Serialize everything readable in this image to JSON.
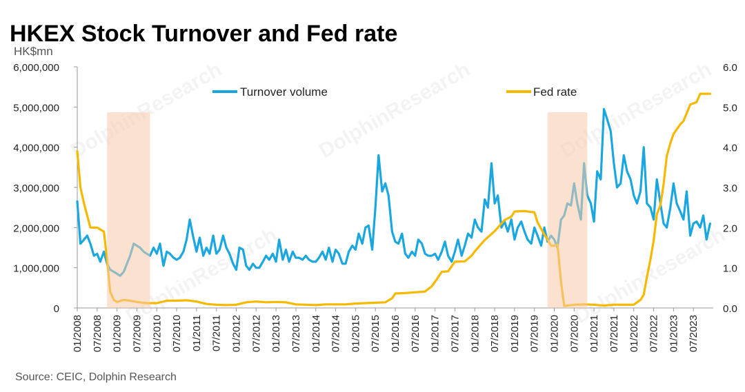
{
  "chart_data": {
    "type": "line",
    "title": "HKEX Stock Turnover and Fed rate",
    "y_left_unit": "HK$mn",
    "source": "Source: CEIC, Dolphin Research",
    "ylim_left": [
      0,
      6000000
    ],
    "ylim_right": [
      0,
      6.0
    ],
    "y_left_ticks": [
      "0",
      "1,000,000",
      "2,000,000",
      "3,000,000",
      "4,000,000",
      "5,000,000",
      "6,000,000"
    ],
    "y_right_ticks": [
      "0.0",
      "1.0",
      "2.0",
      "3.0",
      "4.0",
      "5.0",
      "6.0"
    ],
    "x_tick_labels": [
      "01/2008",
      "07/2008",
      "01/2009",
      "07/2009",
      "01/2010",
      "07/2010",
      "01/2011",
      "07/2011",
      "01/2012",
      "07/2012",
      "01/2013",
      "07/2013",
      "01/2014",
      "07/2014",
      "01/2015",
      "07/2015",
      "01/2016",
      "07/2016",
      "01/2017",
      "07/2017",
      "01/2018",
      "07/2018",
      "01/2019",
      "07/2019",
      "01/2020",
      "07/2020",
      "01/2021",
      "07/2021",
      "01/2022",
      "07/2022",
      "01/2023",
      "07/2023"
    ],
    "x_start": 2008.0,
    "x_end": 2024.0,
    "shaded_periods": [
      [
        2008.75,
        2009.83
      ],
      [
        2019.83,
        2020.83
      ]
    ],
    "colors": {
      "turnover": "#1aa7e0",
      "fed": "#f7b800",
      "shade": "#f7c9a8"
    },
    "series": [
      {
        "name": "Turnover volume",
        "axis": "left",
        "points": [
          [
            2008.0,
            2650000
          ],
          [
            2008.08,
            1600000
          ],
          [
            2008.17,
            1700000
          ],
          [
            2008.25,
            1800000
          ],
          [
            2008.33,
            1600000
          ],
          [
            2008.42,
            1300000
          ],
          [
            2008.5,
            1350000
          ],
          [
            2008.58,
            1150000
          ],
          [
            2008.67,
            1400000
          ],
          [
            2008.75,
            1100000
          ],
          [
            2008.83,
            950000
          ],
          [
            2008.92,
            900000
          ],
          [
            2009.0,
            850000
          ],
          [
            2009.08,
            800000
          ],
          [
            2009.17,
            900000
          ],
          [
            2009.25,
            1100000
          ],
          [
            2009.33,
            1300000
          ],
          [
            2009.42,
            1600000
          ],
          [
            2009.5,
            1550000
          ],
          [
            2009.58,
            1500000
          ],
          [
            2009.67,
            1400000
          ],
          [
            2009.75,
            1350000
          ],
          [
            2009.83,
            1300000
          ],
          [
            2009.92,
            1500000
          ],
          [
            2010.0,
            1350000
          ],
          [
            2010.08,
            1600000
          ],
          [
            2010.17,
            1050000
          ],
          [
            2010.25,
            1400000
          ],
          [
            2010.33,
            1350000
          ],
          [
            2010.42,
            1250000
          ],
          [
            2010.5,
            1200000
          ],
          [
            2010.58,
            1250000
          ],
          [
            2010.67,
            1400000
          ],
          [
            2010.75,
            1700000
          ],
          [
            2010.83,
            2200000
          ],
          [
            2010.92,
            1750000
          ],
          [
            2011.0,
            1400000
          ],
          [
            2011.08,
            1750000
          ],
          [
            2011.17,
            1300000
          ],
          [
            2011.25,
            1500000
          ],
          [
            2011.33,
            1350000
          ],
          [
            2011.42,
            1800000
          ],
          [
            2011.5,
            1350000
          ],
          [
            2011.58,
            1450000
          ],
          [
            2011.67,
            1800000
          ],
          [
            2011.75,
            1500000
          ],
          [
            2011.83,
            1350000
          ],
          [
            2011.92,
            1100000
          ],
          [
            2012.0,
            950000
          ],
          [
            2012.08,
            1500000
          ],
          [
            2012.17,
            1450000
          ],
          [
            2012.25,
            1050000
          ],
          [
            2012.33,
            950000
          ],
          [
            2012.42,
            1100000
          ],
          [
            2012.5,
            1000000
          ],
          [
            2012.58,
            1000000
          ],
          [
            2012.67,
            1150000
          ],
          [
            2012.75,
            1300000
          ],
          [
            2012.83,
            1200000
          ],
          [
            2012.92,
            1350000
          ],
          [
            2013.0,
            1150000
          ],
          [
            2013.08,
            1700000
          ],
          [
            2013.17,
            1200000
          ],
          [
            2013.25,
            1450000
          ],
          [
            2013.33,
            1150000
          ],
          [
            2013.42,
            1400000
          ],
          [
            2013.5,
            1250000
          ],
          [
            2013.58,
            1250000
          ],
          [
            2013.67,
            1200000
          ],
          [
            2013.75,
            1300000
          ],
          [
            2013.83,
            1200000
          ],
          [
            2013.92,
            1150000
          ],
          [
            2014.0,
            1150000
          ],
          [
            2014.08,
            1250000
          ],
          [
            2014.17,
            1400000
          ],
          [
            2014.25,
            1200000
          ],
          [
            2014.33,
            1500000
          ],
          [
            2014.42,
            1150000
          ],
          [
            2014.5,
            1450000
          ],
          [
            2014.58,
            1350000
          ],
          [
            2014.67,
            1100000
          ],
          [
            2014.75,
            1100000
          ],
          [
            2014.83,
            1400000
          ],
          [
            2014.92,
            1550000
          ],
          [
            2015.0,
            1450000
          ],
          [
            2015.08,
            1850000
          ],
          [
            2015.17,
            1600000
          ],
          [
            2015.25,
            2000000
          ],
          [
            2015.33,
            2050000
          ],
          [
            2015.42,
            1450000
          ],
          [
            2015.5,
            2500000
          ],
          [
            2015.58,
            3800000
          ],
          [
            2015.67,
            2900000
          ],
          [
            2015.75,
            3100000
          ],
          [
            2015.83,
            2800000
          ],
          [
            2015.92,
            1900000
          ],
          [
            2016.0,
            1650000
          ],
          [
            2016.08,
            1600000
          ],
          [
            2016.17,
            1850000
          ],
          [
            2016.25,
            1350000
          ],
          [
            2016.33,
            1250000
          ],
          [
            2016.42,
            1400000
          ],
          [
            2016.5,
            1300000
          ],
          [
            2016.58,
            1700000
          ],
          [
            2016.67,
            1600000
          ],
          [
            2016.75,
            1350000
          ],
          [
            2016.83,
            1300000
          ],
          [
            2016.92,
            1300000
          ],
          [
            2017.0,
            1350000
          ],
          [
            2017.08,
            1200000
          ],
          [
            2017.17,
            1400000
          ],
          [
            2017.25,
            1650000
          ],
          [
            2017.33,
            1300000
          ],
          [
            2017.42,
            1150000
          ],
          [
            2017.5,
            1400000
          ],
          [
            2017.58,
            1700000
          ],
          [
            2017.67,
            1300000
          ],
          [
            2017.75,
            1550000
          ],
          [
            2017.83,
            1850000
          ],
          [
            2017.92,
            1750000
          ],
          [
            2018.0,
            2200000
          ],
          [
            2018.08,
            2000000
          ],
          [
            2018.17,
            1900000
          ],
          [
            2018.25,
            2700000
          ],
          [
            2018.33,
            2500000
          ],
          [
            2018.42,
            3600000
          ],
          [
            2018.5,
            2600000
          ],
          [
            2018.58,
            2800000
          ],
          [
            2018.67,
            2000000
          ],
          [
            2018.75,
            2150000
          ],
          [
            2018.83,
            1900000
          ],
          [
            2018.92,
            2200000
          ],
          [
            2019.0,
            1700000
          ],
          [
            2019.08,
            2000000
          ],
          [
            2019.17,
            2150000
          ],
          [
            2019.25,
            1900000
          ],
          [
            2019.33,
            1700000
          ],
          [
            2019.42,
            1600000
          ],
          [
            2019.5,
            2000000
          ],
          [
            2019.58,
            1800000
          ],
          [
            2019.67,
            1550000
          ],
          [
            2019.75,
            2000000
          ],
          [
            2019.83,
            1650000
          ],
          [
            2019.92,
            1800000
          ],
          [
            2020.0,
            1700000
          ],
          [
            2020.08,
            1500000
          ],
          [
            2020.17,
            2200000
          ],
          [
            2020.25,
            2300000
          ],
          [
            2020.33,
            2600000
          ],
          [
            2020.42,
            2550000
          ],
          [
            2020.5,
            3100000
          ],
          [
            2020.58,
            2600000
          ],
          [
            2020.67,
            2200000
          ],
          [
            2020.75,
            3600000
          ],
          [
            2020.83,
            2800000
          ],
          [
            2020.92,
            2600000
          ],
          [
            2021.0,
            2150000
          ],
          [
            2021.08,
            3400000
          ],
          [
            2021.17,
            3200000
          ],
          [
            2021.25,
            4950000
          ],
          [
            2021.33,
            4700000
          ],
          [
            2021.42,
            4400000
          ],
          [
            2021.5,
            3600000
          ],
          [
            2021.58,
            3000000
          ],
          [
            2021.67,
            3100000
          ],
          [
            2021.75,
            3800000
          ],
          [
            2021.83,
            3400000
          ],
          [
            2021.92,
            3200000
          ],
          [
            2022.0,
            2800000
          ],
          [
            2022.08,
            2600000
          ],
          [
            2022.17,
            2900000
          ],
          [
            2022.25,
            4000000
          ],
          [
            2022.33,
            2600000
          ],
          [
            2022.42,
            2500000
          ],
          [
            2022.5,
            2200000
          ],
          [
            2022.58,
            3200000
          ],
          [
            2022.67,
            2600000
          ],
          [
            2022.75,
            2100000
          ],
          [
            2022.83,
            2000000
          ],
          [
            2022.92,
            2500000
          ],
          [
            2023.0,
            3100000
          ],
          [
            2023.08,
            2600000
          ],
          [
            2023.17,
            2400000
          ],
          [
            2023.25,
            2200000
          ],
          [
            2023.33,
            2900000
          ],
          [
            2023.42,
            1800000
          ],
          [
            2023.5,
            2100000
          ],
          [
            2023.58,
            2150000
          ],
          [
            2023.67,
            2000000
          ],
          [
            2023.75,
            2300000
          ],
          [
            2023.83,
            1700000
          ],
          [
            2023.92,
            2100000
          ]
        ]
      },
      {
        "name": "Fed rate",
        "axis": "right",
        "points": [
          [
            2008.0,
            3.9
          ],
          [
            2008.08,
            3.0
          ],
          [
            2008.17,
            2.6
          ],
          [
            2008.25,
            2.3
          ],
          [
            2008.33,
            2.0
          ],
          [
            2008.5,
            2.0
          ],
          [
            2008.67,
            1.9
          ],
          [
            2008.75,
            1.2
          ],
          [
            2008.83,
            0.4
          ],
          [
            2008.92,
            0.2
          ],
          [
            2009.0,
            0.15
          ],
          [
            2009.17,
            0.2
          ],
          [
            2009.33,
            0.18
          ],
          [
            2009.5,
            0.15
          ],
          [
            2009.75,
            0.12
          ],
          [
            2010.0,
            0.12
          ],
          [
            2010.25,
            0.18
          ],
          [
            2010.5,
            0.18
          ],
          [
            2010.75,
            0.19
          ],
          [
            2011.0,
            0.16
          ],
          [
            2011.25,
            0.1
          ],
          [
            2011.5,
            0.08
          ],
          [
            2011.75,
            0.07
          ],
          [
            2012.0,
            0.08
          ],
          [
            2012.25,
            0.14
          ],
          [
            2012.5,
            0.16
          ],
          [
            2012.75,
            0.14
          ],
          [
            2013.0,
            0.15
          ],
          [
            2013.25,
            0.14
          ],
          [
            2013.5,
            0.09
          ],
          [
            2013.75,
            0.08
          ],
          [
            2014.0,
            0.07
          ],
          [
            2014.25,
            0.09
          ],
          [
            2014.5,
            0.09
          ],
          [
            2014.75,
            0.09
          ],
          [
            2015.0,
            0.11
          ],
          [
            2015.25,
            0.12
          ],
          [
            2015.5,
            0.13
          ],
          [
            2015.75,
            0.14
          ],
          [
            2015.92,
            0.24
          ],
          [
            2016.0,
            0.36
          ],
          [
            2016.25,
            0.37
          ],
          [
            2016.5,
            0.39
          ],
          [
            2016.75,
            0.41
          ],
          [
            2016.92,
            0.54
          ],
          [
            2017.0,
            0.65
          ],
          [
            2017.17,
            0.9
          ],
          [
            2017.33,
            0.91
          ],
          [
            2017.5,
            1.15
          ],
          [
            2017.75,
            1.16
          ],
          [
            2017.92,
            1.3
          ],
          [
            2018.0,
            1.41
          ],
          [
            2018.25,
            1.69
          ],
          [
            2018.5,
            1.91
          ],
          [
            2018.75,
            2.19
          ],
          [
            2018.92,
            2.27
          ],
          [
            2019.0,
            2.4
          ],
          [
            2019.25,
            2.41
          ],
          [
            2019.5,
            2.38
          ],
          [
            2019.58,
            2.13
          ],
          [
            2019.75,
            1.83
          ],
          [
            2019.92,
            1.55
          ],
          [
            2020.0,
            1.55
          ],
          [
            2020.08,
            1.58
          ],
          [
            2020.17,
            0.65
          ],
          [
            2020.25,
            0.05
          ],
          [
            2020.5,
            0.08
          ],
          [
            2020.75,
            0.09
          ],
          [
            2021.0,
            0.08
          ],
          [
            2021.25,
            0.06
          ],
          [
            2021.5,
            0.08
          ],
          [
            2021.75,
            0.08
          ],
          [
            2021.92,
            0.08
          ],
          [
            2022.0,
            0.08
          ],
          [
            2022.17,
            0.2
          ],
          [
            2022.25,
            0.33
          ],
          [
            2022.33,
            0.77
          ],
          [
            2022.42,
            1.21
          ],
          [
            2022.5,
            1.68
          ],
          [
            2022.58,
            2.33
          ],
          [
            2022.67,
            2.56
          ],
          [
            2022.75,
            3.08
          ],
          [
            2022.83,
            3.78
          ],
          [
            2022.92,
            4.1
          ],
          [
            2023.0,
            4.33
          ],
          [
            2023.17,
            4.57
          ],
          [
            2023.25,
            4.65
          ],
          [
            2023.42,
            5.06
          ],
          [
            2023.58,
            5.12
          ],
          [
            2023.67,
            5.33
          ],
          [
            2023.92,
            5.33
          ]
        ]
      }
    ]
  }
}
